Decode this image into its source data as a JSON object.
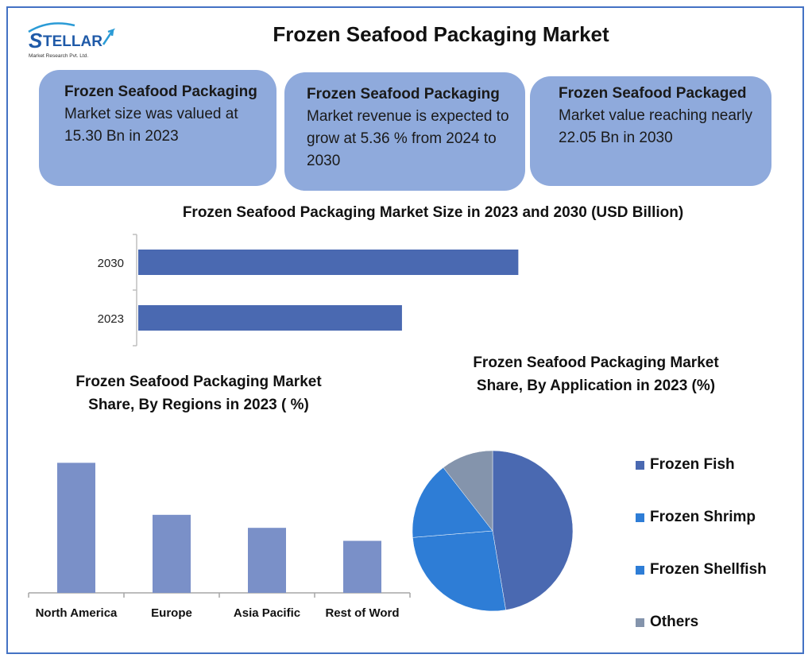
{
  "logo": {
    "brand": "STELLAR",
    "tagline": "Market Research Pvt. Ltd."
  },
  "title": "Frozen Seafood Packaging Market",
  "cards": [
    {
      "head": "Frozen Seafood Packaging",
      "body": "Market size was valued at 15.30 Bn in 2023"
    },
    {
      "head": "Frozen Seafood Packaging",
      "body": "Market revenue is expected to grow at 5.36 % from 2024 to 2030"
    },
    {
      "head": "Frozen Seafood Packaged",
      "body": "Market value reaching nearly 22.05 Bn in 2030"
    }
  ],
  "colors": {
    "frame": "#4472c4",
    "card": "#8faadc",
    "bar_h": "#4a69b1",
    "bar_v": "#7a90c8",
    "pie": [
      "#4a69b1",
      "#2e7dd6",
      "#2e7dd6",
      "#8494ac"
    ]
  },
  "chart_data": [
    {
      "type": "bar",
      "orientation": "horizontal",
      "title": "Frozen Seafood Packaging Market Size in 2023 and 2030 (USD Billion)",
      "categories": [
        "2030",
        "2023"
      ],
      "values": [
        22.05,
        15.3
      ],
      "xlim": [
        0,
        29.5
      ]
    },
    {
      "type": "bar",
      "title": "Frozen Seafood Packaging Market Share, By Regions in 2023 ( %)",
      "categories": [
        "North America",
        "Europe",
        "Asia Pacific",
        "Rest of Word"
      ],
      "values": [
        40,
        24,
        20,
        16
      ],
      "ylim": [
        0,
        44
      ]
    },
    {
      "type": "pie",
      "title": "Frozen Seafood Packaging Market Share, By Application in 2023 (%)",
      "categories": [
        "Frozen Fish",
        "Frozen Shrimp",
        "Frozen Shellfish",
        "Others"
      ],
      "values": [
        45,
        25,
        15,
        10
      ],
      "legend": "right"
    }
  ]
}
